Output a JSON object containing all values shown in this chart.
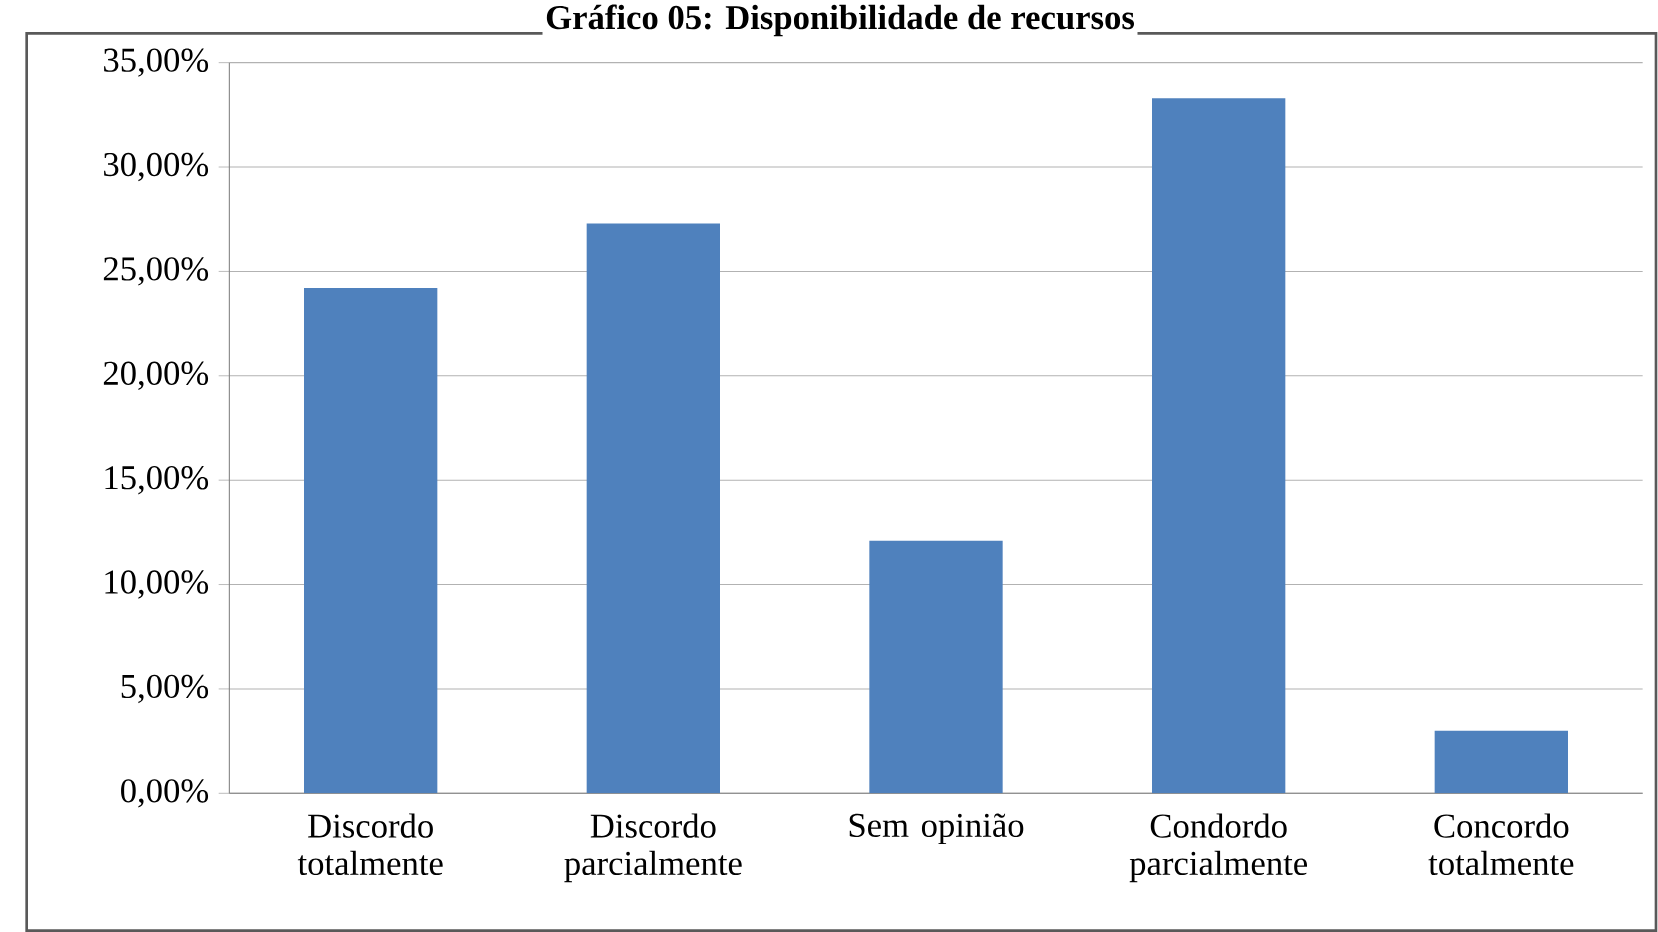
{
  "chart_data": {
    "type": "bar",
    "title": "Gráfico 05: Disponibilidade de recursos",
    "categories": [
      "Discordo totalmente",
      "Discordo parcialmente",
      "Sem opinião",
      "Condordo parcialmente",
      "Concordo totalmente"
    ],
    "values": [
      24.2,
      27.3,
      12.1,
      33.3,
      3.0
    ],
    "color": "#4f81bd",
    "ylim": [
      0,
      35
    ],
    "yticks": [
      {
        "value": 0,
        "label": "0,00%"
      },
      {
        "value": 5,
        "label": "5,00%"
      },
      {
        "value": 10,
        "label": "10,00%"
      },
      {
        "value": 15,
        "label": "15,00%"
      },
      {
        "value": 20,
        "label": "20,00%"
      },
      {
        "value": 25,
        "label": "25,00%"
      },
      {
        "value": 30,
        "label": "30,00%"
      },
      {
        "value": 35,
        "label": "35,00%"
      }
    ],
    "grid": "y"
  }
}
